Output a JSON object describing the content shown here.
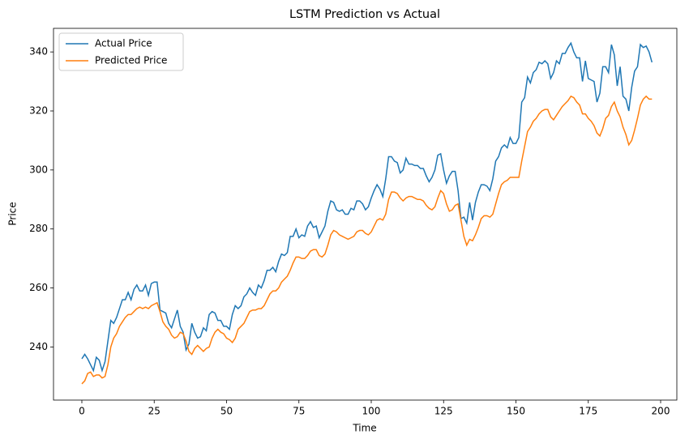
{
  "chart_data": {
    "type": "line",
    "title": "LSTM Prediction vs Actual",
    "x_label": "Time",
    "y_label": "Price",
    "x": [
      0,
      1,
      2,
      3,
      4,
      5,
      6,
      7,
      8,
      9,
      10,
      11,
      12,
      13,
      14,
      15,
      16,
      17,
      18,
      19,
      20,
      21,
      22,
      23,
      24,
      25,
      26,
      27,
      28,
      29,
      30,
      31,
      32,
      33,
      34,
      35,
      36,
      37,
      38,
      39,
      40,
      41,
      42,
      43,
      44,
      45,
      46,
      47,
      48,
      49,
      50,
      51,
      52,
      53,
      54,
      55,
      56,
      57,
      58,
      59,
      60,
      61,
      62,
      63,
      64,
      65,
      66,
      67,
      68,
      69,
      70,
      71,
      72,
      73,
      74,
      75,
      76,
      77,
      78,
      79,
      80,
      81,
      82,
      83,
      84,
      85,
      86,
      87,
      88,
      89,
      90,
      91,
      92,
      93,
      94,
      95,
      96,
      97,
      98,
      99,
      100,
      101,
      102,
      103,
      104,
      105,
      106,
      107,
      108,
      109,
      110,
      111,
      112,
      113,
      114,
      115,
      116,
      117,
      118,
      119,
      120,
      121,
      122,
      123,
      124,
      125,
      126,
      127,
      128,
      129,
      130,
      131,
      132,
      133,
      134,
      135,
      136,
      137,
      138,
      139,
      140,
      141,
      142,
      143,
      144,
      145,
      146,
      147,
      148,
      149,
      150,
      151,
      152,
      153,
      154,
      155,
      156,
      157,
      158,
      159,
      160,
      161,
      162,
      163,
      164,
      165,
      166,
      167,
      168,
      169,
      170,
      171,
      172,
      173,
      174,
      175,
      176,
      177,
      178,
      179,
      180,
      181,
      182,
      183,
      184,
      185,
      186,
      187,
      188,
      189,
      190,
      191,
      192,
      193,
      194,
      195,
      196,
      197
    ],
    "series": [
      {
        "name": "Actual Price",
        "color": "#1f77b4",
        "values": [
          236,
          237.5,
          236,
          234,
          232,
          236.5,
          235.5,
          232,
          235,
          242,
          249,
          248,
          250,
          253,
          256,
          256,
          258.5,
          256,
          259.5,
          261,
          259,
          259,
          261,
          257.5,
          261.5,
          262,
          262,
          252.5,
          252,
          251.5,
          248,
          246.5,
          249.5,
          252.5,
          247,
          245,
          239,
          241,
          248,
          245,
          243,
          243.5,
          246.5,
          245.5,
          251,
          252,
          251.5,
          249,
          249,
          247,
          247,
          246,
          251,
          254,
          253,
          254,
          257,
          258,
          260,
          258.5,
          257.5,
          261,
          260,
          262.5,
          266,
          266,
          267,
          265.5,
          269,
          271.5,
          271,
          272,
          277.5,
          277.5,
          280,
          277,
          278,
          277.5,
          281,
          282.5,
          280.5,
          281,
          277,
          279,
          281,
          286,
          289.5,
          289,
          286.5,
          286,
          286.5,
          285,
          285,
          287,
          286.5,
          289.5,
          289.5,
          288.5,
          286.5,
          287.5,
          290.5,
          293,
          295,
          293.5,
          291,
          297,
          304.5,
          304.5,
          303,
          302.5,
          299,
          300,
          304,
          302,
          302,
          301.5,
          301.5,
          300.5,
          300.5,
          298,
          296,
          297.5,
          300,
          305,
          305.5,
          300,
          295.5,
          298,
          299.5,
          299.5,
          293,
          283.5,
          284,
          282,
          289,
          283,
          289,
          292.5,
          295,
          295,
          294.5,
          293,
          297,
          303,
          304.5,
          307.5,
          308.5,
          307.5,
          311,
          309,
          309,
          311,
          323,
          324.5,
          331.5,
          329.5,
          333,
          334,
          336.5,
          336,
          337,
          336,
          331,
          333,
          337,
          336,
          339.5,
          339.5,
          341.5,
          343,
          340,
          338,
          338,
          330,
          337,
          331,
          330.5,
          330,
          323,
          326,
          335,
          335,
          333,
          342.5,
          339,
          328.5,
          335,
          325,
          324,
          320,
          328,
          333.5,
          335,
          342.5,
          341.5,
          342,
          340,
          336.5
        ]
      },
      {
        "name": "Predicted Price",
        "color": "#ff7f0e",
        "values": [
          227.5,
          228.5,
          231,
          231.5,
          230,
          230.5,
          230.5,
          229.5,
          230,
          234,
          240,
          243,
          244.5,
          247,
          248.5,
          250,
          251,
          251,
          252,
          253,
          253.5,
          253,
          253.5,
          253,
          254,
          254.5,
          255,
          252,
          248.5,
          247,
          246,
          244,
          243,
          243.5,
          245,
          244.5,
          242,
          238.5,
          237.5,
          239.5,
          240.5,
          239.5,
          238.5,
          239.5,
          240,
          243,
          245,
          246,
          245,
          244.5,
          243,
          242.5,
          241.5,
          243,
          246,
          247,
          248,
          250,
          252,
          252.5,
          252.5,
          253,
          253,
          254,
          256,
          258,
          259,
          259,
          260,
          262,
          263,
          264,
          266,
          268.5,
          270.5,
          270.5,
          270,
          270,
          271,
          272.5,
          273,
          273,
          271,
          270.5,
          271.5,
          274.5,
          278,
          279.5,
          279,
          278,
          277.5,
          277,
          276.5,
          277,
          277.5,
          279,
          279.5,
          279.5,
          278.5,
          278,
          279,
          281,
          283,
          283.5,
          283,
          285,
          290,
          292.5,
          292.5,
          292,
          290.5,
          289.5,
          290.5,
          291,
          291,
          290.5,
          290,
          290,
          289.5,
          288,
          287,
          286.5,
          287.5,
          290.5,
          293,
          292,
          288.5,
          286,
          286.5,
          288,
          288.5,
          283,
          277.5,
          274.5,
          276.5,
          276,
          278,
          280.5,
          283.5,
          284.5,
          284.5,
          284,
          285,
          288.5,
          292,
          295,
          296,
          296.5,
          297.5,
          297.5,
          297.5,
          297.5,
          303,
          308,
          313,
          314.5,
          316.5,
          317.5,
          319,
          320,
          320.5,
          320.5,
          318,
          317,
          318.5,
          320,
          321.5,
          322.5,
          323.5,
          325,
          324.5,
          323,
          322,
          319,
          319,
          317.5,
          316.5,
          315,
          312.5,
          311.5,
          314,
          317.5,
          318.5,
          321.5,
          323,
          320,
          318,
          314.5,
          312,
          308.5,
          310,
          313.5,
          317.5,
          322,
          324,
          325,
          324,
          324
        ]
      }
    ],
    "xlim": [
      -9.8,
      205.6
    ],
    "ylim": [
      222,
      348
    ],
    "xticks": [
      0,
      25,
      50,
      75,
      100,
      125,
      150,
      175,
      200
    ],
    "yticks": [
      240,
      260,
      280,
      300,
      320,
      340
    ],
    "grid": false,
    "legend": "upper left"
  }
}
